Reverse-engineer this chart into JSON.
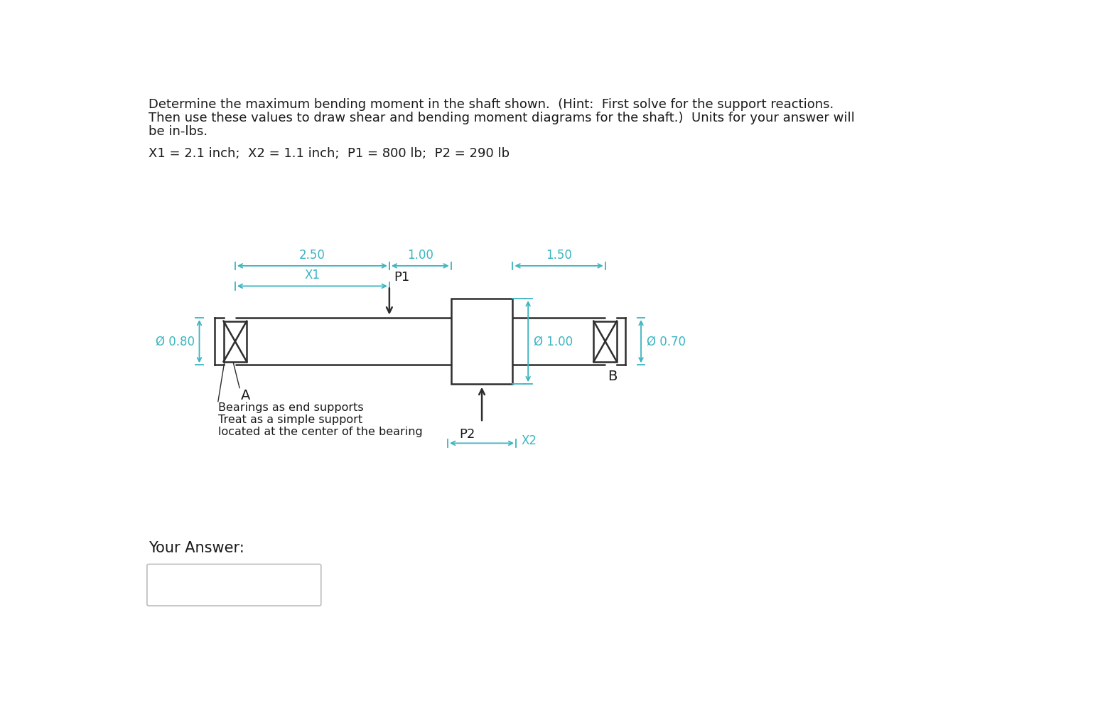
{
  "bg_color": "#ffffff",
  "text_color": "#1a1a1a",
  "dim_color": "#3ab5c0",
  "shaft_color": "#2d2d2d",
  "title_lines": [
    "Determine the maximum bending moment in the shaft shown.  (Hint:  First solve for the support reactions.",
    "Then use these values to draw shear and bending moment diagrams for the shaft.)  Units for your answer will",
    "be in-lbs."
  ],
  "params_line": "X1 = 2.1 inch;  X2 = 1.1 inch;  P1 = 800 lb;  P2 = 290 lb",
  "answer_label": "Your Answer:",
  "dim_250": "2.50",
  "dim_100": "1.00",
  "dim_150": "1.50",
  "label_P1": "P1",
  "label_X1": "X1",
  "label_phi_100": "Ø 1.00",
  "label_phi_080": "Ø 0.80",
  "label_phi_070": "Ø 0.70",
  "label_A": "A",
  "label_B": "B",
  "label_P2": "P2",
  "label_X2": "X2",
  "bearing_note_lines": [
    "Bearings as end supports",
    "Treat as a simple support",
    "located at the center of the bearing"
  ],
  "fig_width": 15.62,
  "fig_height": 10.24
}
